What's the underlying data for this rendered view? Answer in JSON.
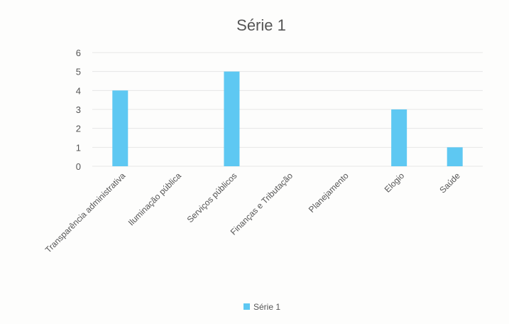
{
  "chart_data": {
    "type": "bar",
    "title": "Série 1",
    "categories": [
      "Transparência administrativa",
      "Iluminação pública",
      "Serviços públicos",
      "Finanças e Tributação",
      "Planejamento",
      "Elogio",
      "Saúde"
    ],
    "series": [
      {
        "name": "Série 1",
        "values": [
          4,
          0,
          5,
          0,
          0,
          3,
          1
        ],
        "color": "#5ec8f2"
      }
    ],
    "yticks": [
      0,
      1,
      2,
      3,
      4,
      5,
      6
    ],
    "ylim": [
      0,
      6
    ],
    "grid": true,
    "legend": "bottom"
  }
}
